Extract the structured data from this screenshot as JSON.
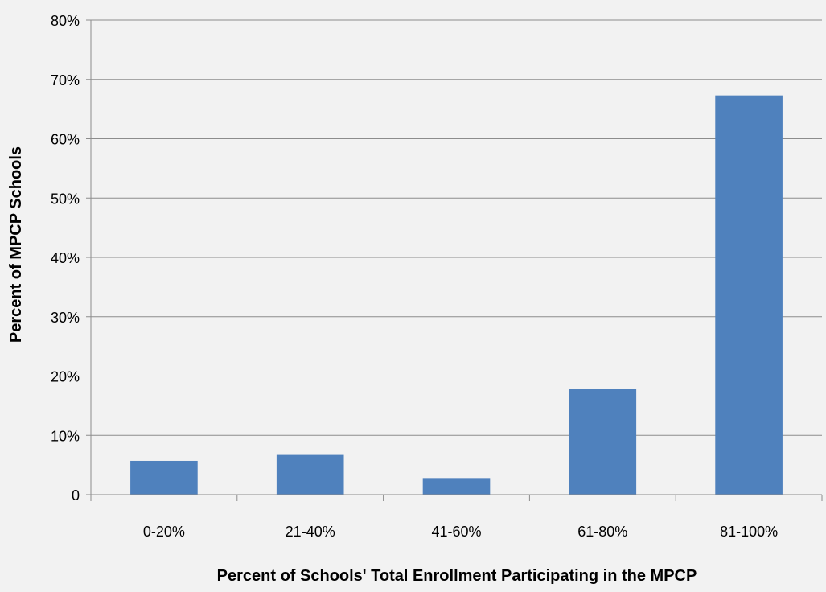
{
  "chart_data": {
    "type": "bar",
    "title": "",
    "xlabel": "Percent of Schools' Total Enrollment Participating in the MPCP",
    "ylabel": "Percent of MPCP Schools",
    "categories": [
      "0-20%",
      "21-40%",
      "41-60%",
      "61-80%",
      "81-100%"
    ],
    "values": [
      5.7,
      6.7,
      2.8,
      17.8,
      67.3
    ],
    "ylim": [
      0,
      80
    ],
    "yticks": [
      0,
      10,
      20,
      30,
      40,
      50,
      60,
      70,
      80
    ],
    "ytick_labels": [
      "0",
      "10%",
      "20%",
      "30%",
      "40%",
      "50%",
      "60%",
      "70%",
      "80%"
    ],
    "grid": true,
    "legend": "none",
    "colors": {
      "bar": "#4f81bd",
      "grid": "#8c8c8c",
      "axis": "#8c8c8c",
      "background": "#f2f2f2"
    }
  }
}
